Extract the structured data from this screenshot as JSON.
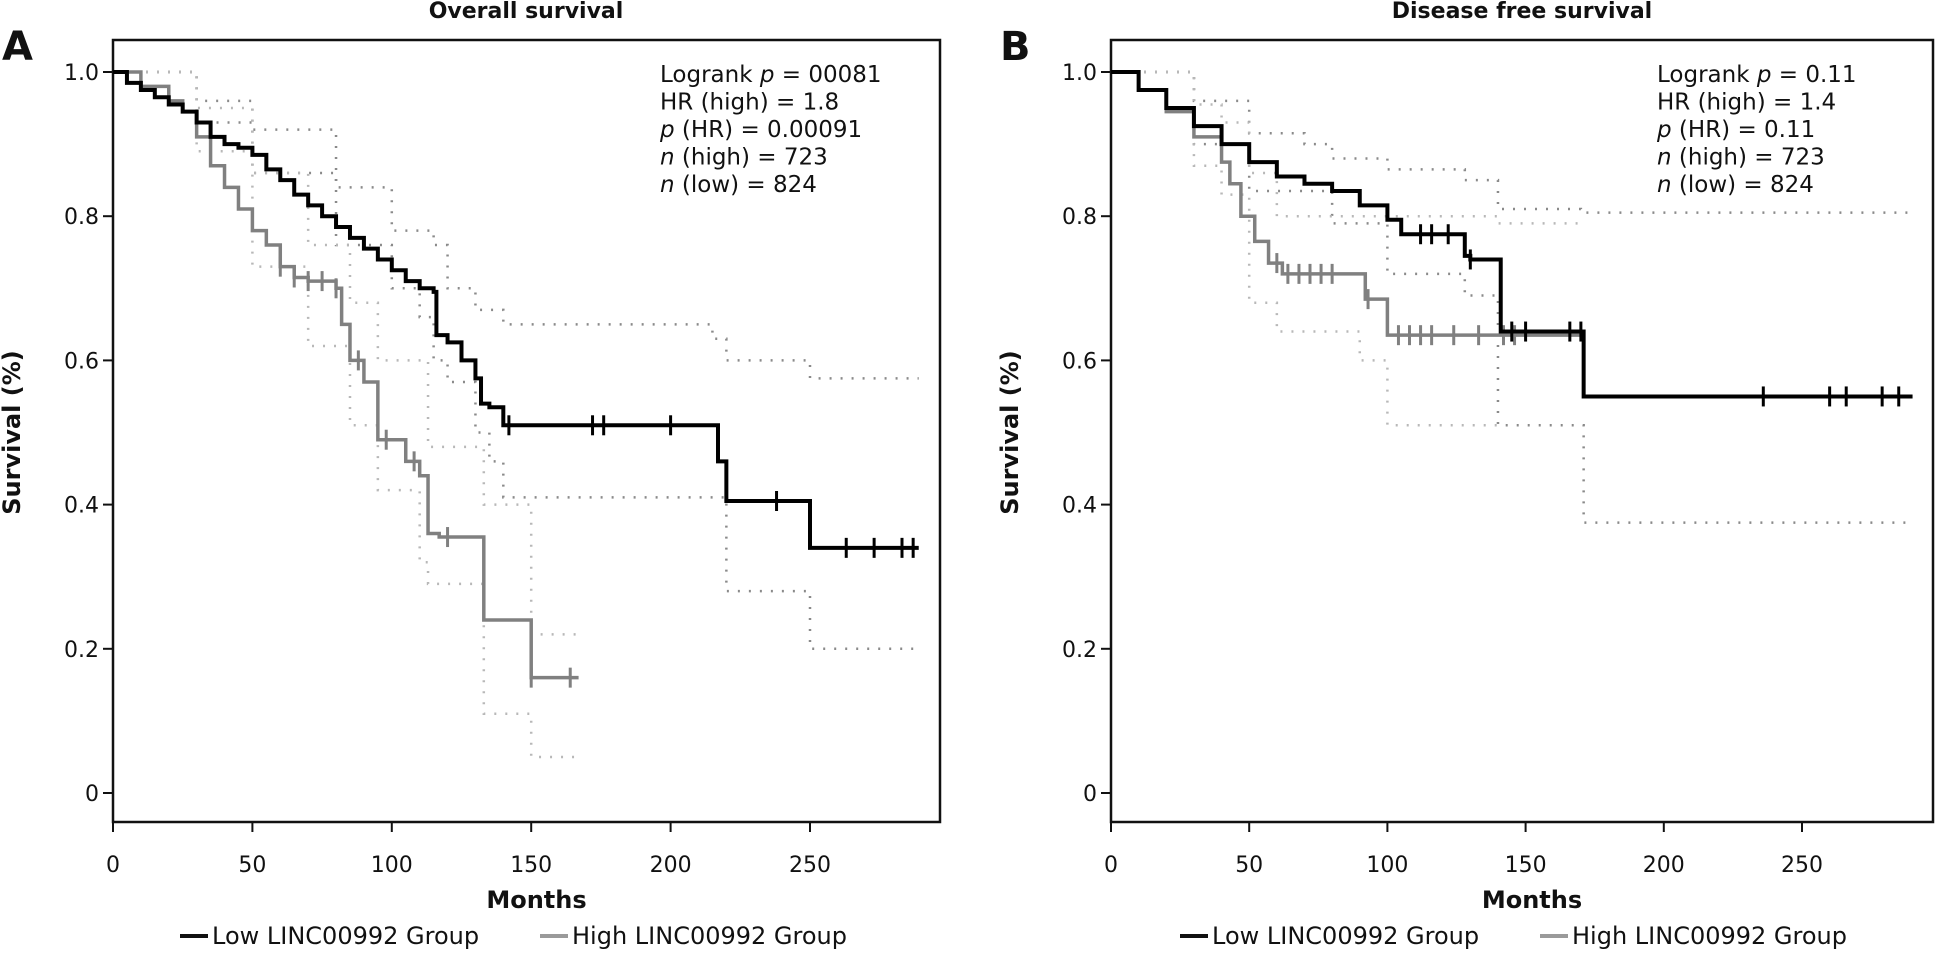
{
  "chart_data": [
    {
      "panel": "A",
      "type": "line",
      "title": "Overall survival",
      "xlabel": "Months",
      "ylabel": "Survival (%)",
      "xlim": [
        0,
        295
      ],
      "ylim": [
        0,
        1.0
      ],
      "x_ticks": [
        "0",
        "50",
        "100",
        "150",
        "200",
        "250"
      ],
      "y_ticks": [
        "0",
        "0.2",
        "0.4",
        "0.6",
        "0.8",
        "1.0"
      ],
      "grid": false,
      "legend_position": "bottom",
      "stats": [
        {
          "label": "Logrank ",
          "italic": "p",
          "value": " = 00081"
        },
        {
          "label": "HR (high) = 1.8",
          "italic": "",
          "value": ""
        },
        {
          "label": "",
          "italic": "p",
          "value": " (HR) = 0.00091"
        },
        {
          "label": "",
          "italic": "n",
          "value": " (high) = 723"
        },
        {
          "label": "",
          "italic": "n",
          "value": " (low) = 824"
        }
      ],
      "series": [
        {
          "name": "Low LINC00992 Group",
          "color": "#000000",
          "x": [
            0,
            5,
            10,
            15,
            20,
            25,
            30,
            35,
            40,
            45,
            50,
            55,
            60,
            65,
            70,
            75,
            80,
            85,
            90,
            95,
            100,
            105,
            110,
            115,
            116,
            120,
            125,
            130,
            132,
            135,
            140,
            150,
            170,
            200,
            215,
            217,
            220,
            230,
            250,
            260,
            289
          ],
          "y": [
            1.0,
            0.985,
            0.975,
            0.965,
            0.955,
            0.945,
            0.93,
            0.91,
            0.9,
            0.895,
            0.885,
            0.865,
            0.85,
            0.83,
            0.815,
            0.8,
            0.785,
            0.77,
            0.755,
            0.74,
            0.725,
            0.71,
            0.7,
            0.695,
            0.635,
            0.625,
            0.6,
            0.575,
            0.54,
            0.535,
            0.51,
            0.51,
            0.51,
            0.51,
            0.51,
            0.46,
            0.405,
            0.405,
            0.34,
            0.34,
            0.34
          ],
          "censor_x": [
            142,
            172,
            176,
            200,
            238,
            263,
            273,
            283,
            287
          ],
          "ci_upper": {
            "x": [
              0,
              30,
              50,
              80,
              100,
              115,
              120,
              130,
              140,
              200,
              215,
              220,
              250,
              260,
              289
            ],
            "y": [
              1.0,
              0.96,
              0.92,
              0.84,
              0.78,
              0.76,
              0.7,
              0.67,
              0.65,
              0.65,
              0.63,
              0.6,
              0.575,
              0.575,
              0.575
            ]
          },
          "ci_lower": {
            "x": [
              0,
              30,
              50,
              80,
              100,
              110,
              115,
              120,
              130,
              135,
              140,
              200,
              215,
              220,
              250,
              289
            ],
            "y": [
              1.0,
              0.93,
              0.86,
              0.76,
              0.7,
              0.66,
              0.6,
              0.57,
              0.5,
              0.46,
              0.41,
              0.41,
              0.41,
              0.28,
              0.2,
              0.2
            ]
          }
        },
        {
          "name": "High LINC00992 Group",
          "color": "#808080",
          "x": [
            0,
            10,
            20,
            25,
            30,
            35,
            40,
            45,
            50,
            55,
            60,
            65,
            70,
            75,
            80,
            82,
            85,
            90,
            95,
            100,
            105,
            110,
            113,
            117,
            133,
            150,
            167
          ],
          "y": [
            1.0,
            0.98,
            0.96,
            0.945,
            0.91,
            0.87,
            0.84,
            0.81,
            0.78,
            0.76,
            0.73,
            0.715,
            0.71,
            0.71,
            0.7,
            0.65,
            0.6,
            0.57,
            0.49,
            0.49,
            0.46,
            0.44,
            0.36,
            0.355,
            0.24,
            0.16,
            0.16
          ],
          "censor_x": [
            60,
            65,
            70,
            75,
            80,
            88,
            98,
            108,
            120,
            150,
            164
          ],
          "ci_upper": {
            "x": [
              0,
              30,
              50,
              70,
              85,
              95,
              113,
              133,
              150,
              167
            ],
            "y": [
              1.0,
              0.95,
              0.86,
              0.76,
              0.68,
              0.6,
              0.48,
              0.4,
              0.22,
              0.22
            ]
          },
          "ci_lower": {
            "x": [
              0,
              30,
              50,
              70,
              85,
              95,
              110,
              113,
              133,
              150,
              167
            ],
            "y": [
              1.0,
              0.89,
              0.73,
              0.62,
              0.51,
              0.42,
              0.32,
              0.29,
              0.11,
              0.05,
              0.05
            ]
          }
        }
      ]
    },
    {
      "panel": "B",
      "type": "line",
      "title": "Disease free survival",
      "xlabel": "Months",
      "ylabel": "Survival (%)",
      "xlim": [
        0,
        295
      ],
      "ylim": [
        0,
        1.0
      ],
      "x_ticks": [
        "0",
        "50",
        "100",
        "150",
        "200",
        "250"
      ],
      "y_ticks": [
        "0",
        "0.2",
        "0.4",
        "0.6",
        "0.8",
        "1.0"
      ],
      "grid": false,
      "legend_position": "bottom",
      "stats": [
        {
          "label": "Logrank ",
          "italic": "p",
          "value": " = 0.11"
        },
        {
          "label": "HR (high) = 1.4",
          "italic": "",
          "value": ""
        },
        {
          "label": "",
          "italic": "p",
          "value": " (HR) = 0.11"
        },
        {
          "label": "",
          "italic": "n",
          "value": " (high) = 723"
        },
        {
          "label": "",
          "italic": "n",
          "value": " (low) = 824"
        }
      ],
      "series": [
        {
          "name": "Low LINC00992 Group",
          "color": "#000000",
          "x": [
            0,
            10,
            20,
            30,
            40,
            50,
            60,
            70,
            80,
            90,
            100,
            105,
            110,
            120,
            128,
            130,
            140,
            141,
            160,
            170,
            171,
            200,
            250,
            290
          ],
          "y": [
            1.0,
            0.975,
            0.95,
            0.925,
            0.9,
            0.875,
            0.855,
            0.845,
            0.835,
            0.815,
            0.795,
            0.775,
            0.775,
            0.775,
            0.745,
            0.74,
            0.74,
            0.64,
            0.64,
            0.64,
            0.55,
            0.55,
            0.55,
            0.55
          ],
          "censor_x": [
            112,
            116,
            122,
            130,
            145,
            150,
            166,
            170,
            236,
            260,
            266,
            279,
            285
          ],
          "ci_upper": {
            "x": [
              0,
              30,
              50,
              70,
              80,
              100,
              128,
              140,
              170,
              290
            ],
            "y": [
              1.0,
              0.96,
              0.915,
              0.9,
              0.88,
              0.865,
              0.85,
              0.81,
              0.805,
              0.805
            ]
          },
          "ci_lower": {
            "x": [
              0,
              30,
              50,
              80,
              100,
              128,
              140,
              170,
              171,
              290
            ],
            "y": [
              1.0,
              0.9,
              0.835,
              0.79,
              0.72,
              0.69,
              0.51,
              0.51,
              0.375,
              0.375
            ]
          }
        },
        {
          "name": "High LINC00992 Group",
          "color": "#808080",
          "x": [
            0,
            10,
            20,
            30,
            40,
            43,
            47,
            52,
            57,
            62,
            70,
            80,
            90,
            92,
            100,
            140,
            171
          ],
          "y": [
            1.0,
            0.975,
            0.945,
            0.91,
            0.875,
            0.845,
            0.8,
            0.765,
            0.735,
            0.72,
            0.72,
            0.72,
            0.72,
            0.685,
            0.635,
            0.635,
            0.635
          ],
          "censor_x": [
            60,
            64,
            68,
            72,
            76,
            80,
            93,
            104,
            108,
            112,
            116,
            124,
            133,
            142,
            146
          ],
          "ci_upper": {
            "x": [
              0,
              30,
              40,
              50,
              60,
              90,
              100,
              140,
              171
            ],
            "y": [
              1.0,
              0.955,
              0.93,
              0.86,
              0.8,
              0.8,
              0.8,
              0.79,
              0.79
            ]
          },
          "ci_lower": {
            "x": [
              0,
              30,
              40,
              50,
              60,
              90,
              100,
              140
            ],
            "y": [
              1.0,
              0.87,
              0.83,
              0.68,
              0.64,
              0.6,
              0.51,
              0.51
            ]
          }
        }
      ]
    }
  ]
}
